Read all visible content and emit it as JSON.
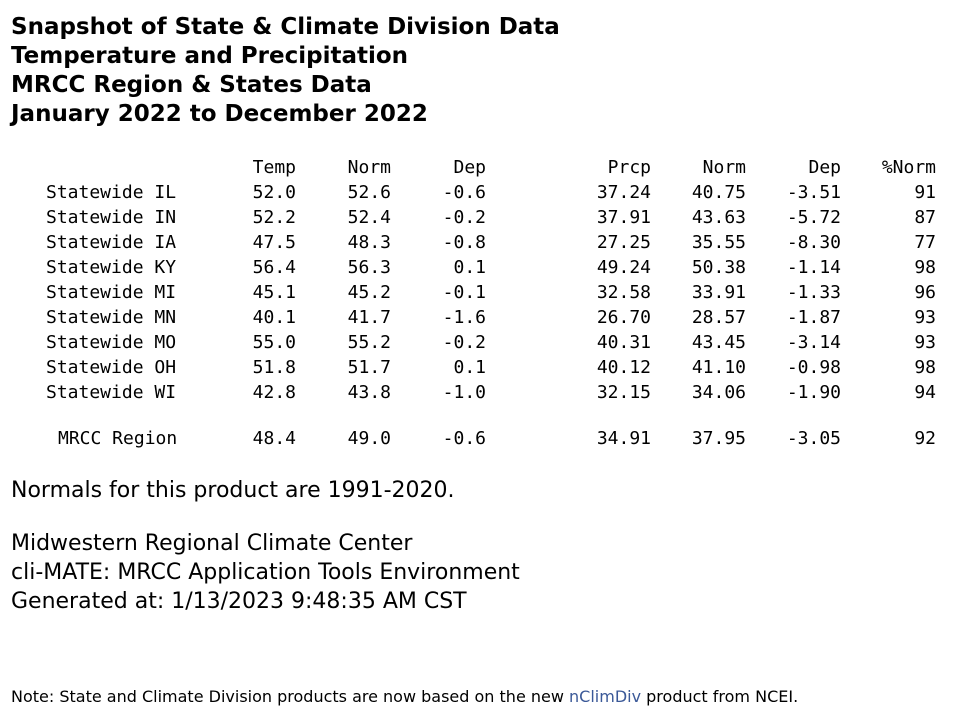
{
  "title_lines": [
    "Snapshot of State & Climate Division Data",
    "Temperature and Precipitation",
    "MRCC Region & States Data",
    "January 2022 to December 2022"
  ],
  "table": {
    "headers": [
      "Temp",
      "Norm",
      "Dep",
      "Prcp",
      "Norm",
      "Dep",
      "%Norm"
    ],
    "rows": [
      {
        "label": "Statewide IL",
        "temp": "52.0",
        "temp_norm": "52.6",
        "temp_dep": "-0.6",
        "prcp": "37.24",
        "prcp_norm": "40.75",
        "prcp_dep": "-3.51",
        "pct_norm": "91"
      },
      {
        "label": "Statewide IN",
        "temp": "52.2",
        "temp_norm": "52.4",
        "temp_dep": "-0.2",
        "prcp": "37.91",
        "prcp_norm": "43.63",
        "prcp_dep": "-5.72",
        "pct_norm": "87"
      },
      {
        "label": "Statewide IA",
        "temp": "47.5",
        "temp_norm": "48.3",
        "temp_dep": "-0.8",
        "prcp": "27.25",
        "prcp_norm": "35.55",
        "prcp_dep": "-8.30",
        "pct_norm": "77"
      },
      {
        "label": "Statewide KY",
        "temp": "56.4",
        "temp_norm": "56.3",
        "temp_dep": "0.1",
        "prcp": "49.24",
        "prcp_norm": "50.38",
        "prcp_dep": "-1.14",
        "pct_norm": "98"
      },
      {
        "label": "Statewide MI",
        "temp": "45.1",
        "temp_norm": "45.2",
        "temp_dep": "-0.1",
        "prcp": "32.58",
        "prcp_norm": "33.91",
        "prcp_dep": "-1.33",
        "pct_norm": "96"
      },
      {
        "label": "Statewide MN",
        "temp": "40.1",
        "temp_norm": "41.7",
        "temp_dep": "-1.6",
        "prcp": "26.70",
        "prcp_norm": "28.57",
        "prcp_dep": "-1.87",
        "pct_norm": "93"
      },
      {
        "label": "Statewide MO",
        "temp": "55.0",
        "temp_norm": "55.2",
        "temp_dep": "-0.2",
        "prcp": "40.31",
        "prcp_norm": "43.45",
        "prcp_dep": "-3.14",
        "pct_norm": "93"
      },
      {
        "label": "Statewide OH",
        "temp": "51.8",
        "temp_norm": "51.7",
        "temp_dep": "0.1",
        "prcp": "40.12",
        "prcp_norm": "41.10",
        "prcp_dep": "-0.98",
        "pct_norm": "98"
      },
      {
        "label": "Statewide WI",
        "temp": "42.8",
        "temp_norm": "43.8",
        "temp_dep": "-1.0",
        "prcp": "32.15",
        "prcp_norm": "34.06",
        "prcp_dep": "-1.90",
        "pct_norm": "94"
      }
    ],
    "region": {
      "label": "MRCC Region",
      "temp": "48.4",
      "temp_norm": "49.0",
      "temp_dep": "-0.6",
      "prcp": "34.91",
      "prcp_norm": "37.95",
      "prcp_dep": "-3.05",
      "pct_norm": "92"
    }
  },
  "normals_note": "Normals for this product are 1991-2020.",
  "footer_lines": [
    "Midwestern Regional Climate Center",
    "cli-MATE: MRCC Application Tools Environment",
    "Generated at: 1/13/2023 9:48:35 AM CST"
  ],
  "note": {
    "prefix": "Note: State and Climate Division products are now based on the new ",
    "link_text": "nClimDiv",
    "suffix": " product from NCEI.",
    "link_color": "#3b5998"
  }
}
